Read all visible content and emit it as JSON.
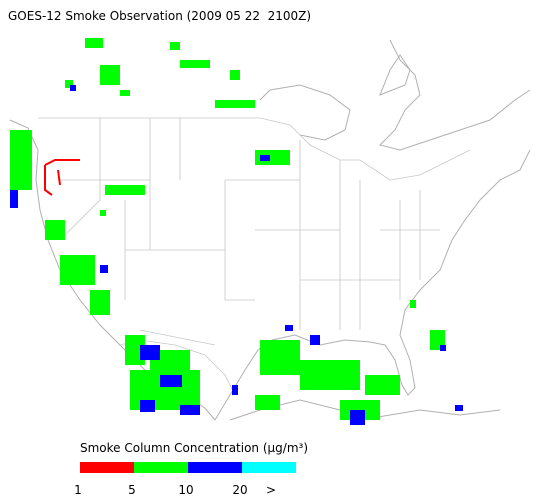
{
  "title": "GOES-12 Smoke Observation (2009 05 22  2100Z)",
  "legend": {
    "label": "Smoke Column Concentration (µg/m³)",
    "bins": [
      1,
      5,
      10,
      20
    ],
    "overflow_label": ">",
    "colors": [
      "#ff0000",
      "#00ff00",
      "#0000ff",
      "#00ffff"
    ]
  }
}
